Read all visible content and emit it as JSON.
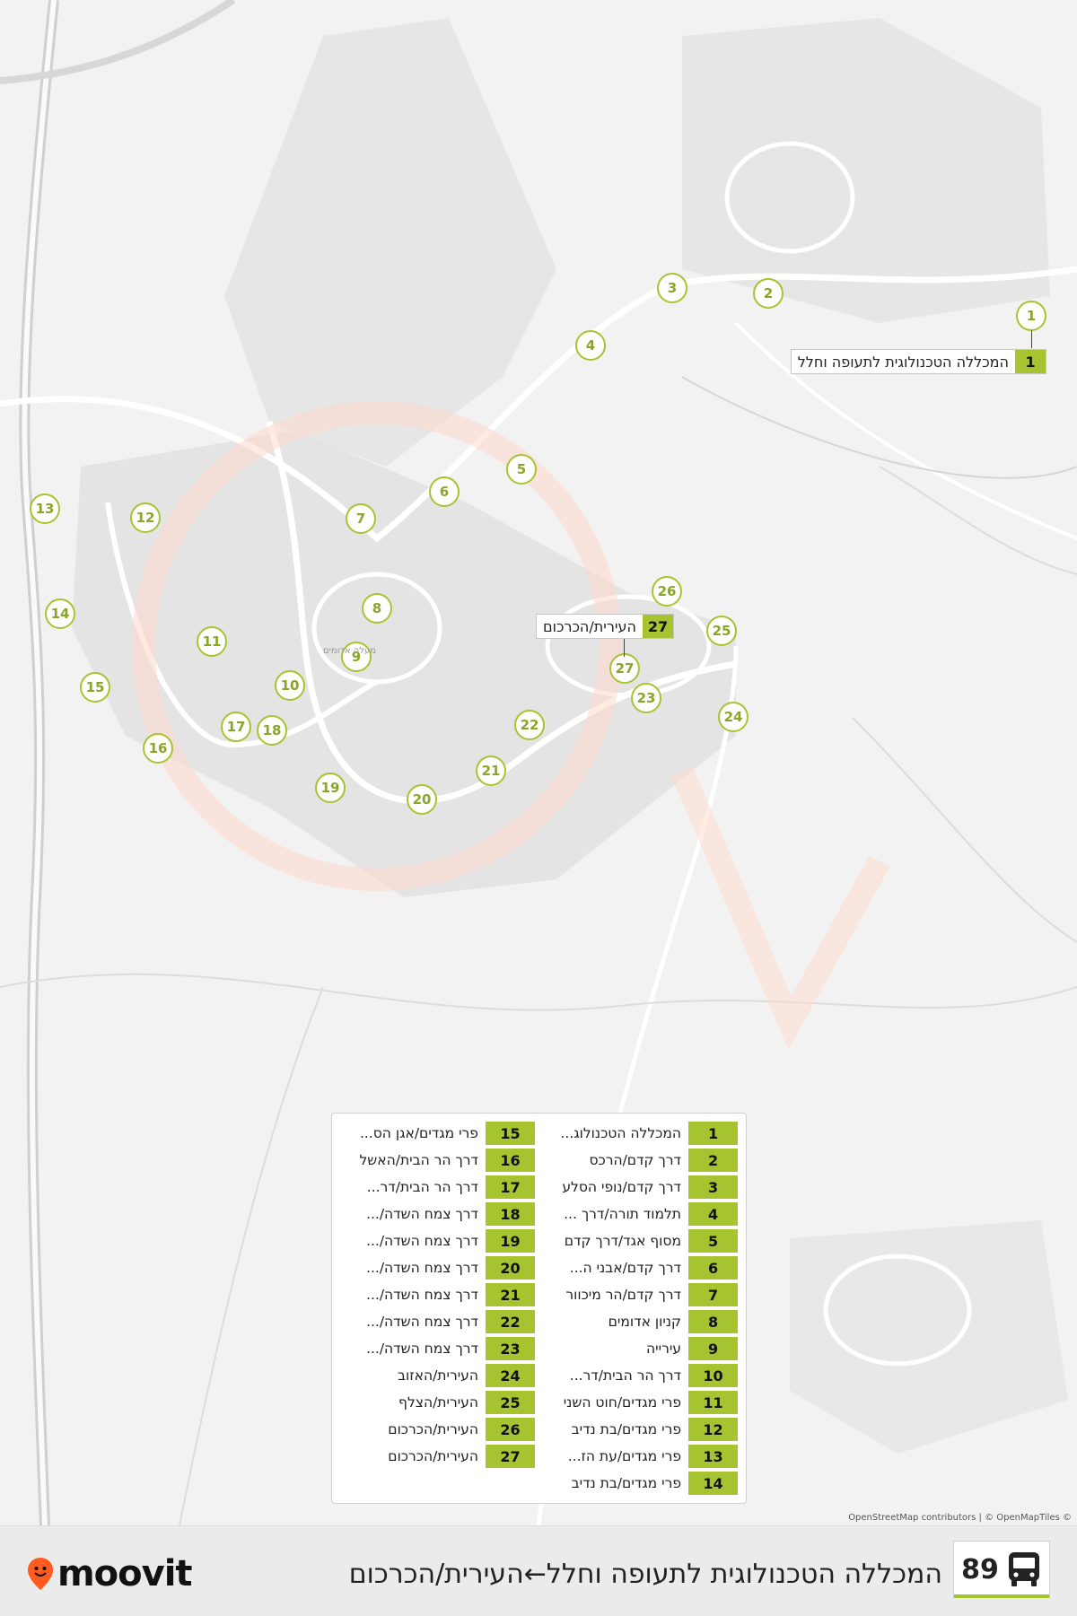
{
  "map": {
    "markers": [
      {
        "n": "1"
      },
      {
        "n": "2"
      },
      {
        "n": "3"
      },
      {
        "n": "4"
      },
      {
        "n": "5"
      },
      {
        "n": "6"
      },
      {
        "n": "7"
      },
      {
        "n": "8"
      },
      {
        "n": "9"
      },
      {
        "n": "10"
      },
      {
        "n": "11"
      },
      {
        "n": "12"
      },
      {
        "n": "13"
      },
      {
        "n": "14"
      },
      {
        "n": "15"
      },
      {
        "n": "16"
      },
      {
        "n": "17"
      },
      {
        "n": "18"
      },
      {
        "n": "19"
      },
      {
        "n": "20"
      },
      {
        "n": "21"
      },
      {
        "n": "22"
      },
      {
        "n": "23"
      },
      {
        "n": "24"
      },
      {
        "n": "25"
      },
      {
        "n": "26"
      },
      {
        "n": "27"
      }
    ],
    "callout_first": {
      "num": "1",
      "name": "המכללה הטכנולוגית לתעופה וחלל"
    },
    "callout_last": {
      "num": "27",
      "name": "העירית/הכרכום"
    },
    "place_label": "מעלה אדומים"
  },
  "legend": {
    "col_right": [
      {
        "num": "1",
        "name": "המכללה הטכנולוג..."
      },
      {
        "num": "2",
        "name": "דרך קדם/הרכס"
      },
      {
        "num": "3",
        "name": "דרך קדם/נופי הסלע"
      },
      {
        "num": "4",
        "name": "תלמוד תורה/דרך ..."
      },
      {
        "num": "5",
        "name": "מסוף אגד/דרך קדם"
      },
      {
        "num": "6",
        "name": "דרך קדם/אבני ה..."
      },
      {
        "num": "7",
        "name": "דרך קדם/הר מיכוור"
      },
      {
        "num": "8",
        "name": "קניון אדומים"
      },
      {
        "num": "9",
        "name": "עירייה"
      },
      {
        "num": "10",
        "name": "דרך הר הבית/דר..."
      },
      {
        "num": "11",
        "name": "פרי מגדים/חוט השני"
      },
      {
        "num": "12",
        "name": "פרי מגדים/בת נדיב"
      },
      {
        "num": "13",
        "name": "פרי מגדים/עת הז..."
      },
      {
        "num": "14",
        "name": "פרי מגדים/בת נדיב"
      }
    ],
    "col_left": [
      {
        "num": "15",
        "name": "פרי מגדים/אגן הס..."
      },
      {
        "num": "16",
        "name": "דרך הר הבית/האשל"
      },
      {
        "num": "17",
        "name": "דרך הר הבית/דר..."
      },
      {
        "num": "18",
        "name": "דרך צמח השדה/..."
      },
      {
        "num": "19",
        "name": "דרך צמח השדה/..."
      },
      {
        "num": "20",
        "name": "דרך צמח השדה/..."
      },
      {
        "num": "21",
        "name": "דרך צמח השדה/..."
      },
      {
        "num": "22",
        "name": "דרך צמח השדה/..."
      },
      {
        "num": "23",
        "name": "דרך צמח השדה/..."
      },
      {
        "num": "24",
        "name": "העירית/האזוב"
      },
      {
        "num": "25",
        "name": "העירית/הצלף"
      },
      {
        "num": "26",
        "name": "העירית/הכרכום"
      },
      {
        "num": "27",
        "name": "העירית/הכרכום"
      }
    ]
  },
  "attribution": "OpenStreetMap contributors | © OpenMapTiles ©",
  "footer": {
    "logo_text": "moovit",
    "route_title": "המכללה הטכנולוגית לתעופה וחלל←העירית/הכרכום",
    "route_number": "89",
    "bus_icon": "bus-icon",
    "colors": {
      "accent": "#a6c42f",
      "logo_accent": "#ff5a1f"
    }
  }
}
